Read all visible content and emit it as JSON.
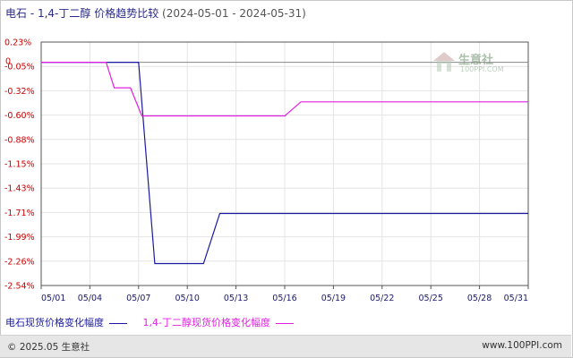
{
  "title": {
    "main": "电石 - 1,4-丁二醇 价格趋势比较",
    "range": "(2024-05-01 - 2024-05-31)"
  },
  "watermark": {
    "name": "生意社",
    "url": "100PPI.COM"
  },
  "footer": {
    "copyright": "© 2025.05 生意社",
    "site": "www.100PPI.com"
  },
  "colors": {
    "series1": "#1a1aa0",
    "series2": "#e020e0",
    "axis": "#555555",
    "grid": "#e4e4e4",
    "tick": "#cc0000"
  },
  "chart_data": {
    "type": "line",
    "ylim": [
      -2.54,
      0.23
    ],
    "y_ticks": [
      "0.23%",
      "-0.05%",
      "-0.32%",
      "-0.60%",
      "-0.88%",
      "-1.15%",
      "-1.43%",
      "-1.71%",
      "-1.99%",
      "-2.26%",
      "-2.54%"
    ],
    "zero_label": "0",
    "xlim": [
      1,
      31
    ],
    "x_ticks": [
      {
        "day": 1,
        "label": "05/01"
      },
      {
        "day": 4,
        "label": "05/04"
      },
      {
        "day": 7,
        "label": "05/07"
      },
      {
        "day": 10,
        "label": "05/10"
      },
      {
        "day": 13,
        "label": "05/13"
      },
      {
        "day": 16,
        "label": "05/16"
      },
      {
        "day": 19,
        "label": "05/19"
      },
      {
        "day": 22,
        "label": "05/22"
      },
      {
        "day": 25,
        "label": "05/25"
      },
      {
        "day": 28,
        "label": "05/28"
      },
      {
        "day": 31,
        "label": "05/31"
      }
    ],
    "grid": true,
    "legend_position": "bottom",
    "series": [
      {
        "name": "电石现货价格变化幅度",
        "points": [
          [
            1,
            0
          ],
          [
            7,
            0
          ],
          [
            8,
            -2.29
          ],
          [
            11,
            -2.29
          ],
          [
            12,
            -1.72
          ],
          [
            31,
            -1.72
          ]
        ]
      },
      {
        "name": "1,4-丁二醇现货价格变化幅度",
        "points": [
          [
            1,
            0
          ],
          [
            5,
            0
          ],
          [
            5.5,
            -0.29
          ],
          [
            6.5,
            -0.29
          ],
          [
            7.2,
            -0.61
          ],
          [
            16,
            -0.61
          ],
          [
            17,
            -0.45
          ],
          [
            31,
            -0.45
          ]
        ]
      }
    ]
  }
}
